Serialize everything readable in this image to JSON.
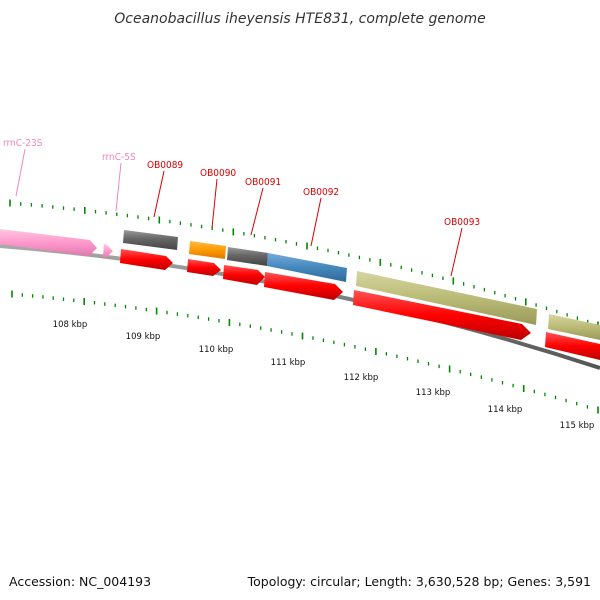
{
  "title": "Oceanobacillus iheyensis HTE831, complete genome",
  "footer": {
    "accession": "Accession: NC_004193",
    "summary": "Topology: circular; Length: 3,630,528 bp; Genes: 3,591"
  },
  "colors": {
    "cds_red": "#ff0000",
    "rrna_pink": "#ff99cc",
    "label_red": "#dd0000",
    "label_pink": "#ee88bb",
    "tick_green": "#008800",
    "gray_feature": "#666666",
    "orange_feature": "#ff9900",
    "blue_feature": "#4488bb",
    "olive_feature": "#bbbb77",
    "backbone": "#777777"
  },
  "scale": {
    "labels": [
      "108 kbp",
      "109 kbp",
      "110 kbp",
      "111 kbp",
      "112 kbp",
      "113 kbp",
      "114 kbp",
      "115 kbp"
    ]
  },
  "genes": [
    {
      "id": "rrnC-23S",
      "color": "pink"
    },
    {
      "id": "rrnC-5S",
      "color": "pink"
    },
    {
      "id": "OB0089",
      "color": "red"
    },
    {
      "id": "OB0090",
      "color": "red"
    },
    {
      "id": "OB0091",
      "color": "red"
    },
    {
      "id": "OB0092",
      "color": "red"
    },
    {
      "id": "OB0093",
      "color": "red"
    }
  ]
}
